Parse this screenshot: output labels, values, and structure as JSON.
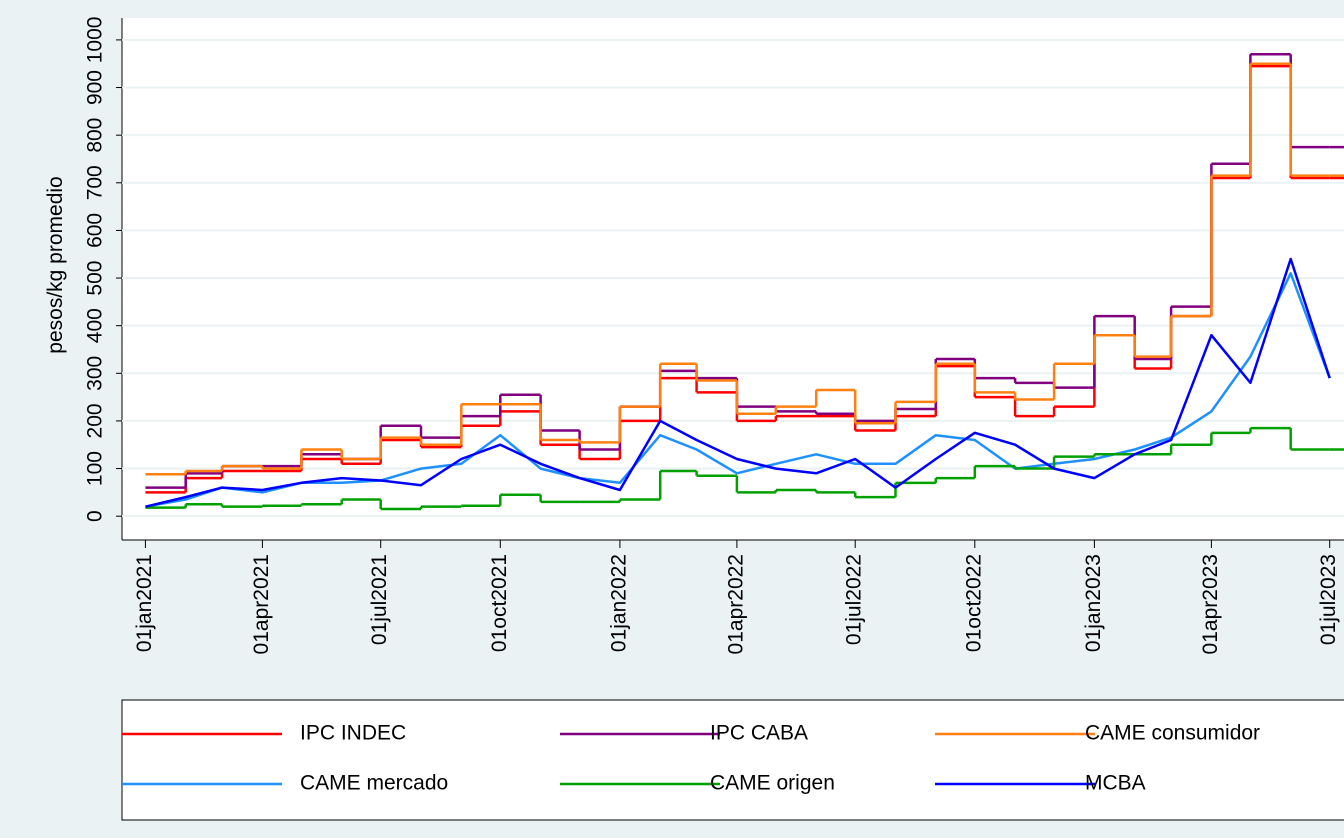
{
  "chart_data": {
    "type": "line",
    "y_label": "pesos/kg promedio",
    "x": [
      "2021-01-01",
      "2021-02-01",
      "2021-03-01",
      "2021-04-01",
      "2021-05-01",
      "2021-06-01",
      "2021-07-01",
      "2021-08-01",
      "2021-09-01",
      "2021-10-01",
      "2021-11-01",
      "2021-12-01",
      "2022-01-01",
      "2022-02-01",
      "2022-03-01",
      "2022-04-01",
      "2022-05-01",
      "2022-06-01",
      "2022-07-01",
      "2022-08-01",
      "2022-09-01",
      "2022-10-01",
      "2022-11-01",
      "2022-12-01",
      "2023-01-01",
      "2023-02-01",
      "2023-03-01",
      "2023-04-01",
      "2023-05-01",
      "2023-06-01",
      "2023-07-01"
    ],
    "series": [
      {
        "name": "IPC INDEC",
        "color": "#ff0000",
        "step": true,
        "values": [
          50,
          80,
          95,
          95,
          120,
          110,
          160,
          145,
          190,
          220,
          150,
          120,
          200,
          290,
          260,
          200,
          210,
          210,
          180,
          210,
          315,
          250,
          210,
          230,
          380,
          310,
          420,
          710,
          945,
          710,
          710
        ]
      },
      {
        "name": "IPC CABA",
        "color": "#800080",
        "step": true,
        "values": [
          60,
          90,
          105,
          105,
          130,
          120,
          190,
          165,
          210,
          255,
          180,
          140,
          230,
          305,
          290,
          230,
          220,
          215,
          200,
          225,
          330,
          290,
          280,
          270,
          420,
          330,
          440,
          740,
          970,
          775,
          775
        ]
      },
      {
        "name": "CAME consumidor",
        "color": "#ff8010",
        "step": true,
        "values": [
          88,
          95,
          105,
          100,
          140,
          120,
          165,
          150,
          235,
          235,
          160,
          155,
          230,
          320,
          285,
          215,
          230,
          265,
          195,
          240,
          320,
          260,
          245,
          320,
          380,
          335,
          420,
          715,
          950,
          715,
          715
        ]
      },
      {
        "name": "CAME mercado",
        "color": "#1e90ff",
        "step": false,
        "values": [
          20,
          35,
          60,
          50,
          70,
          70,
          75,
          100,
          110,
          170,
          100,
          80,
          70,
          170,
          140,
          90,
          110,
          130,
          110,
          110,
          170,
          160,
          100,
          110,
          120,
          140,
          165,
          220,
          335,
          510,
          290
        ]
      },
      {
        "name": "CAME origen",
        "color": "#00a000",
        "step": true,
        "values": [
          18,
          25,
          20,
          22,
          25,
          35,
          15,
          20,
          22,
          45,
          30,
          30,
          35,
          95,
          85,
          50,
          55,
          50,
          40,
          70,
          80,
          105,
          100,
          125,
          130,
          130,
          150,
          175,
          185,
          140,
          140
        ]
      },
      {
        "name": "MCBA",
        "color": "#0000ff",
        "step": false,
        "values": [
          20,
          40,
          60,
          55,
          70,
          80,
          75,
          65,
          120,
          150,
          110,
          80,
          55,
          200,
          160,
          120,
          100,
          90,
          120,
          60,
          120,
          175,
          150,
          100,
          80,
          130,
          160,
          380,
          280,
          540,
          290
        ]
      }
    ],
    "xlim": [
      "2020-12-14",
      "2023-07-12"
    ],
    "xticks": [
      {
        "value": "2021-01-01",
        "label": "01jan2021"
      },
      {
        "value": "2021-04-01",
        "label": "01apr2021"
      },
      {
        "value": "2021-07-01",
        "label": "01jul2021"
      },
      {
        "value": "2021-10-01",
        "label": "01oct2021"
      },
      {
        "value": "2022-01-01",
        "label": "01jan2022"
      },
      {
        "value": "2022-04-01",
        "label": "01apr2022"
      },
      {
        "value": "2022-07-01",
        "label": "01jul2022"
      },
      {
        "value": "2022-10-01",
        "label": "01oct2022"
      },
      {
        "value": "2023-01-01",
        "label": "01jan2023"
      },
      {
        "value": "2023-04-01",
        "label": "01apr2023"
      },
      {
        "value": "2023-07-01",
        "label": "01jul2023"
      }
    ],
    "ylim": [
      -50,
      1046
    ],
    "yticks": [
      0,
      100,
      200,
      300,
      400,
      500,
      600,
      700,
      800,
      900,
      1000
    ],
    "grid": true,
    "legend": "bottom"
  }
}
